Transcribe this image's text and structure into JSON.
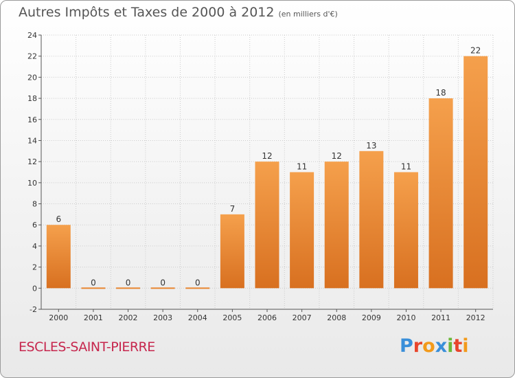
{
  "title": "Autres Impôts et Taxes de 2000 à 2012",
  "unit": "(en milliers d'€)",
  "town": "ESCLES-SAINT-PIERRE",
  "logo": {
    "text": "Proxiti",
    "letter_colors": [
      "#3a8fd9",
      "#e8452c",
      "#f29a1b",
      "#3a8fd9",
      "#6cb83a",
      "#e8452c",
      "#f29a1b"
    ]
  },
  "colors": {
    "bar_top": "#f5a04c",
    "bar_bottom": "#d87020",
    "bar_zero": "#e8852f",
    "grid": "#cccccc",
    "axis": "#555555"
  },
  "chart_data": {
    "type": "bar",
    "categories": [
      "2000",
      "2001",
      "2002",
      "2003",
      "2004",
      "2005",
      "2006",
      "2007",
      "2008",
      "2009",
      "2010",
      "2011",
      "2012"
    ],
    "values": [
      6,
      0,
      0,
      0,
      0,
      7,
      12,
      11,
      12,
      13,
      11,
      18,
      22
    ],
    "ylim": [
      -2,
      24
    ],
    "yticks": [
      -2,
      0,
      2,
      4,
      6,
      8,
      10,
      12,
      14,
      16,
      18,
      20,
      22,
      24
    ],
    "grid": true,
    "title": "Autres Impôts et Taxes de 2000 à 2012",
    "xlabel": "",
    "ylabel": ""
  }
}
